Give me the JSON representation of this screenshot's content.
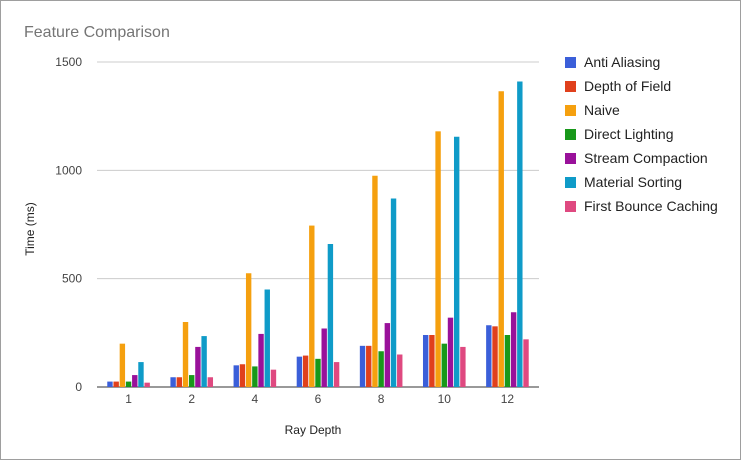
{
  "chart_data": {
    "type": "bar",
    "title": "Feature Comparison",
    "xlabel": "Ray Depth",
    "ylabel": "Time (ms)",
    "ylim": [
      0,
      1500
    ],
    "yticks": [
      0,
      500,
      1000,
      1500
    ],
    "grid": true,
    "legend_position": "right",
    "categories": [
      "1",
      "2",
      "4",
      "6",
      "8",
      "10",
      "12"
    ],
    "series": [
      {
        "name": "Anti Aliasing",
        "color": "#3b5fd9",
        "values": [
          25,
          45,
          100,
          140,
          190,
          240,
          285
        ]
      },
      {
        "name": "Depth of Field",
        "color": "#e0401c",
        "values": [
          25,
          45,
          105,
          145,
          190,
          240,
          280
        ]
      },
      {
        "name": "Naive",
        "color": "#f5a00f",
        "values": [
          200,
          300,
          525,
          745,
          975,
          1180,
          1365
        ]
      },
      {
        "name": "Direct Lighting",
        "color": "#18981a",
        "values": [
          25,
          55,
          95,
          130,
          165,
          200,
          240
        ]
      },
      {
        "name": "Stream Compaction",
        "color": "#99119a",
        "values": [
          55,
          185,
          245,
          270,
          295,
          320,
          345
        ]
      },
      {
        "name": "Material Sorting",
        "color": "#0f9bc8",
        "values": [
          115,
          235,
          450,
          660,
          870,
          1155,
          1410
        ]
      },
      {
        "name": "First Bounce Caching",
        "color": "#df4980",
        "values": [
          20,
          45,
          80,
          115,
          150,
          185,
          220
        ]
      }
    ]
  }
}
